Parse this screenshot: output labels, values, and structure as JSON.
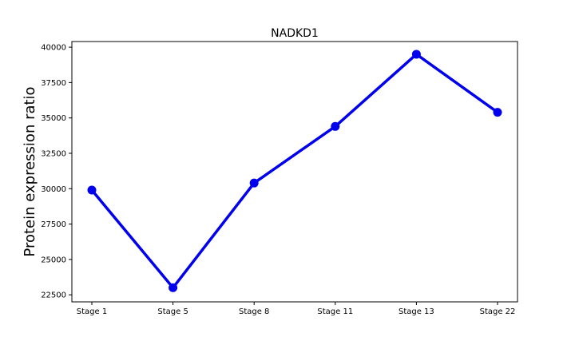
{
  "chart_data": {
    "type": "line",
    "title": "NADKD1",
    "xlabel": "",
    "ylabel": "Protein expression ratio",
    "categories": [
      "Stage 1",
      "Stage 5",
      "Stage 8",
      "Stage 11",
      "Stage 13",
      "Stage 22"
    ],
    "series": [
      {
        "name": "",
        "values": [
          29900,
          23000,
          30400,
          34400,
          39500,
          35400
        ],
        "color": "#0000ee"
      }
    ],
    "ylim": [
      22000,
      40400
    ],
    "yticks": [
      22500,
      25000,
      27500,
      30000,
      32500,
      35000,
      37500,
      40000
    ],
    "grid": false,
    "legend": "none"
  }
}
